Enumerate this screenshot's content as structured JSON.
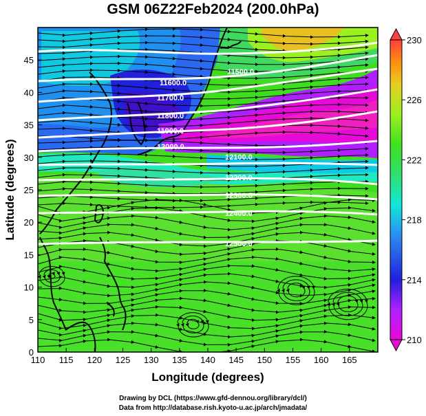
{
  "title": "GSM 06Z22Feb2024 (200.0hPa)",
  "credits": {
    "line1": "Drawing by DCL (https://www.gfd-dennou.org/library/dcl/)",
    "line2": "Data from http://database.rish.kyoto-u.ac.jp/arch/jmadata/"
  },
  "map": {
    "xlabel": "Longitude (degrees)",
    "ylabel": "Latitude  (degrees)",
    "lon_range": [
      110,
      170
    ],
    "lat_range": [
      0,
      50
    ],
    "lon_ticks": [
      "110",
      "115",
      "120",
      "125",
      "130",
      "135",
      "140",
      "145",
      "150",
      "155",
      "160",
      "165"
    ],
    "lat_ticks": [
      "0",
      "5",
      "10",
      "15",
      "20",
      "25",
      "30",
      "35",
      "40",
      "45"
    ],
    "contour_labels": [
      "11500.0",
      "11600.0",
      "11700.0",
      "11800.0",
      "11900.0",
      "12000.0",
      "12100.0",
      "12200.0",
      "12300.0",
      "12400.0",
      "12500.0"
    ],
    "colorbar": {
      "ticks": [
        "210",
        "214",
        "218",
        "222",
        "226",
        "230"
      ],
      "min": 210,
      "max": 230,
      "colors": [
        "#e60ad6",
        "#b020ff",
        "#2020dd",
        "#2a90f0",
        "#10e8d8",
        "#30e070",
        "#40e020",
        "#9af020",
        "#e8d020",
        "#ff8a10",
        "#ff4040"
      ]
    },
    "fields": {
      "temperature": "shaded",
      "geopotential_height": "white contours",
      "wind": "streamlines"
    }
  }
}
